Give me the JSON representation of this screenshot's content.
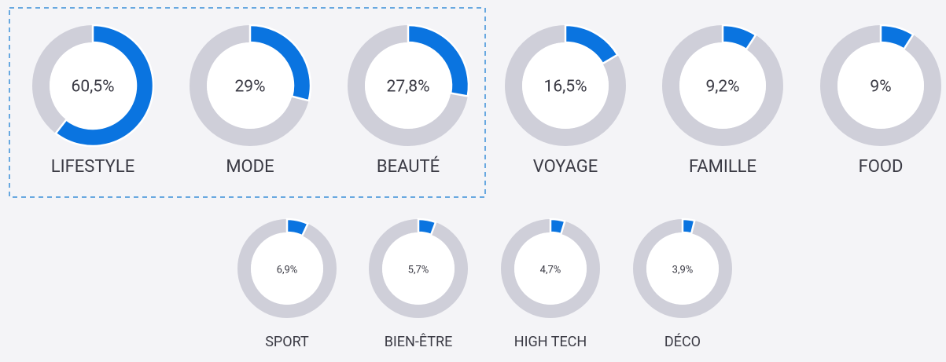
{
  "chart_data": [
    {
      "type": "donut",
      "title": "LIFESTYLE",
      "values": [
        60.5
      ],
      "value_labels": [
        "60,5%"
      ],
      "color": "#0a74e0"
    },
    {
      "type": "donut",
      "title": "MODE",
      "values": [
        29
      ],
      "value_labels": [
        "29%"
      ],
      "color": "#0a74e0"
    },
    {
      "type": "donut",
      "title": "BEAUTÉ",
      "values": [
        27.8
      ],
      "value_labels": [
        "27,8%"
      ],
      "color": "#0a74e0"
    },
    {
      "type": "donut",
      "title": "VOYAGE",
      "values": [
        16.5
      ],
      "value_labels": [
        "16,5%"
      ],
      "color": "#0a74e0"
    },
    {
      "type": "donut",
      "title": "FAMILLE",
      "values": [
        9.2
      ],
      "value_labels": [
        "9,2%"
      ],
      "color": "#0a74e0"
    },
    {
      "type": "donut",
      "title": "FOOD",
      "values": [
        9
      ],
      "value_labels": [
        "9%"
      ],
      "color": "#0a74e0"
    },
    {
      "type": "donut",
      "title": "SPORT",
      "values": [
        6.9
      ],
      "value_labels": [
        "6,9%"
      ],
      "color": "#0a74e0"
    },
    {
      "type": "donut",
      "title": "BIEN-ÊTRE",
      "values": [
        5.7
      ],
      "value_labels": [
        "5,7%"
      ],
      "color": "#0a74e0"
    },
    {
      "type": "donut",
      "title": "HIGH TECH",
      "values": [
        4.7
      ],
      "value_labels": [
        "4,7%"
      ],
      "color": "#0a74e0"
    },
    {
      "type": "donut",
      "title": "DÉCO",
      "values": [
        3.9
      ],
      "value_labels": [
        "3,9%"
      ],
      "color": "#0a74e0"
    }
  ]
}
